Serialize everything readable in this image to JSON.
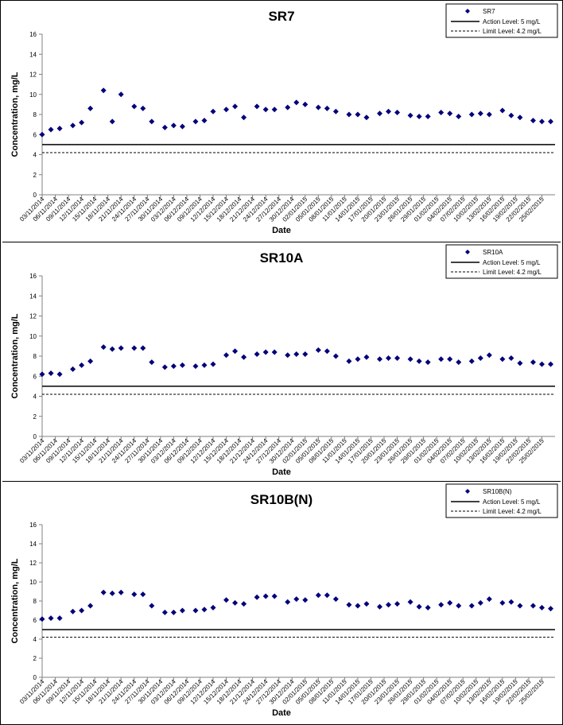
{
  "dates": [
    "03/11/2014",
    "06/11/2014",
    "09/11/2014",
    "12/11/2014",
    "15/11/2014",
    "18/11/2014",
    "21/11/2014",
    "24/11/2014",
    "27/11/2014",
    "30/11/2014",
    "03/12/2014",
    "06/12/2014",
    "09/12/2014",
    "12/12/2014",
    "15/12/2014",
    "18/12/2014",
    "21/12/2014",
    "24/12/2014",
    "27/12/2014",
    "30/12/2014",
    "02/01/2015",
    "05/01/2015",
    "08/01/2015",
    "11/01/2015",
    "14/01/2015",
    "17/01/2015",
    "20/01/2015",
    "23/01/2015",
    "26/01/2015",
    "29/01/2015",
    "01/02/2015",
    "04/02/2015",
    "07/02/2015",
    "10/02/2015",
    "13/02/2015",
    "16/02/2015",
    "19/02/2015",
    "22/02/2015",
    "25/02/2015"
  ],
  "colors": {
    "marker": "#00007a",
    "axis": "#808080",
    "line": "#000000"
  },
  "chart_data": [
    {
      "type": "scatter",
      "title": "SR7",
      "xlabel": "Date",
      "ylabel": "Concentration, mg/L",
      "ylim": [
        0,
        16
      ],
      "yticks": [
        "0",
        "2",
        "4",
        "6",
        "8",
        "10",
        "12",
        "14",
        "16"
      ],
      "x_start": "03/11/2014",
      "x_end": "28/02/2015",
      "legend": {
        "position": "top-right",
        "entries": [
          "SR7",
          "Action Level: 5 mg/L",
          "Limit Level: 4.2 mg/L"
        ]
      },
      "reference_lines": [
        {
          "name": "Action Level: 5 mg/L",
          "y": 5,
          "style": "solid"
        },
        {
          "name": "Limit Level: 4.2 mg/L",
          "y": 4.2,
          "style": "dashed"
        }
      ],
      "series": [
        {
          "name": "SR7",
          "values": [
            [
              "03/11/2014",
              6.0
            ],
            [
              "05/11/2014",
              6.5
            ],
            [
              "07/11/2014",
              6.6
            ],
            [
              "10/11/2014",
              6.9
            ],
            [
              "12/11/2014",
              7.2
            ],
            [
              "14/11/2014",
              8.6
            ],
            [
              "17/11/2014",
              10.4
            ],
            [
              "19/11/2014",
              7.3
            ],
            [
              "21/11/2014",
              10.0
            ],
            [
              "24/11/2014",
              8.8
            ],
            [
              "26/11/2014",
              8.6
            ],
            [
              "28/11/2014",
              7.3
            ],
            [
              "01/12/2014",
              6.7
            ],
            [
              "03/12/2014",
              6.9
            ],
            [
              "05/12/2014",
              6.8
            ],
            [
              "08/12/2014",
              7.3
            ],
            [
              "10/12/2014",
              7.4
            ],
            [
              "12/12/2014",
              8.3
            ],
            [
              "15/12/2014",
              8.5
            ],
            [
              "17/12/2014",
              8.8
            ],
            [
              "19/12/2014",
              7.7
            ],
            [
              "22/12/2014",
              8.8
            ],
            [
              "24/12/2014",
              8.5
            ],
            [
              "26/12/2014",
              8.5
            ],
            [
              "29/12/2014",
              8.7
            ],
            [
              "31/12/2014",
              9.2
            ],
            [
              "02/01/2015",
              9.0
            ],
            [
              "05/01/2015",
              8.7
            ],
            [
              "07/01/2015",
              8.6
            ],
            [
              "09/01/2015",
              8.3
            ],
            [
              "12/01/2015",
              8.0
            ],
            [
              "14/01/2015",
              8.0
            ],
            [
              "16/01/2015",
              7.7
            ],
            [
              "19/01/2015",
              8.1
            ],
            [
              "21/01/2015",
              8.3
            ],
            [
              "23/01/2015",
              8.2
            ],
            [
              "26/01/2015",
              7.9
            ],
            [
              "28/01/2015",
              7.8
            ],
            [
              "30/01/2015",
              7.8
            ],
            [
              "02/02/2015",
              8.2
            ],
            [
              "04/02/2015",
              8.1
            ],
            [
              "06/02/2015",
              7.8
            ],
            [
              "09/02/2015",
              8.0
            ],
            [
              "11/02/2015",
              8.1
            ],
            [
              "13/02/2015",
              8.0
            ],
            [
              "16/02/2015",
              8.4
            ],
            [
              "18/02/2015",
              7.9
            ],
            [
              "20/02/2015",
              7.7
            ],
            [
              "23/02/2015",
              7.4
            ],
            [
              "25/02/2015",
              7.3
            ],
            [
              "27/02/2015",
              7.3
            ]
          ]
        }
      ]
    },
    {
      "type": "scatter",
      "title": "SR10A",
      "xlabel": "Date",
      "ylabel": "Concentration, mg/L",
      "ylim": [
        0,
        16
      ],
      "yticks": [
        "0",
        "2",
        "4",
        "6",
        "8",
        "10",
        "12",
        "14",
        "16"
      ],
      "x_start": "03/11/2014",
      "x_end": "28/02/2015",
      "legend": {
        "position": "top-right",
        "entries": [
          "SR10A",
          "Action Level: 5 mg/L",
          "Limit Level: 4.2 mg/L"
        ]
      },
      "reference_lines": [
        {
          "name": "Action Level: 5 mg/L",
          "y": 5,
          "style": "solid"
        },
        {
          "name": "Limit Level: 4.2 mg/L",
          "y": 4.2,
          "style": "dashed"
        }
      ],
      "series": [
        {
          "name": "SR10A",
          "values": [
            [
              "03/11/2014",
              6.2
            ],
            [
              "05/11/2014",
              6.3
            ],
            [
              "07/11/2014",
              6.2
            ],
            [
              "10/11/2014",
              6.7
            ],
            [
              "12/11/2014",
              7.1
            ],
            [
              "14/11/2014",
              7.5
            ],
            [
              "17/11/2014",
              8.9
            ],
            [
              "19/11/2014",
              8.7
            ],
            [
              "21/11/2014",
              8.8
            ],
            [
              "24/11/2014",
              8.8
            ],
            [
              "26/11/2014",
              8.8
            ],
            [
              "28/11/2014",
              7.4
            ],
            [
              "01/12/2014",
              6.9
            ],
            [
              "03/12/2014",
              7.0
            ],
            [
              "05/12/2014",
              7.1
            ],
            [
              "08/12/2014",
              7.0
            ],
            [
              "10/12/2014",
              7.1
            ],
            [
              "12/12/2014",
              7.2
            ],
            [
              "15/12/2014",
              8.1
            ],
            [
              "17/12/2014",
              8.5
            ],
            [
              "19/12/2014",
              7.9
            ],
            [
              "22/12/2014",
              8.2
            ],
            [
              "24/12/2014",
              8.4
            ],
            [
              "26/12/2014",
              8.4
            ],
            [
              "29/12/2014",
              8.1
            ],
            [
              "31/12/2014",
              8.2
            ],
            [
              "02/01/2015",
              8.2
            ],
            [
              "05/01/2015",
              8.6
            ],
            [
              "07/01/2015",
              8.5
            ],
            [
              "09/01/2015",
              8.0
            ],
            [
              "12/01/2015",
              7.5
            ],
            [
              "14/01/2015",
              7.7
            ],
            [
              "16/01/2015",
              7.9
            ],
            [
              "19/01/2015",
              7.7
            ],
            [
              "21/01/2015",
              7.8
            ],
            [
              "23/01/2015",
              7.8
            ],
            [
              "26/01/2015",
              7.7
            ],
            [
              "28/01/2015",
              7.5
            ],
            [
              "30/01/2015",
              7.4
            ],
            [
              "02/02/2015",
              7.7
            ],
            [
              "04/02/2015",
              7.7
            ],
            [
              "06/02/2015",
              7.4
            ],
            [
              "09/02/2015",
              7.5
            ],
            [
              "11/02/2015",
              7.8
            ],
            [
              "13/02/2015",
              8.1
            ],
            [
              "16/02/2015",
              7.7
            ],
            [
              "18/02/2015",
              7.8
            ],
            [
              "20/02/2015",
              7.3
            ],
            [
              "23/02/2015",
              7.4
            ],
            [
              "25/02/2015",
              7.2
            ],
            [
              "27/02/2015",
              7.2
            ]
          ]
        }
      ]
    },
    {
      "type": "scatter",
      "title": "SR10B(N)",
      "xlabel": "Date",
      "ylabel": "Concentration, mg/L",
      "ylim": [
        0,
        16
      ],
      "yticks": [
        "0",
        "2",
        "4",
        "6",
        "8",
        "10",
        "12",
        "14",
        "16"
      ],
      "x_start": "03/11/2014",
      "x_end": "28/02/2015",
      "legend": {
        "position": "top-right",
        "entries": [
          "SR10B(N)",
          "Action Level: 5 mg/L",
          "Limit Level: 4.2 mg/L"
        ]
      },
      "reference_lines": [
        {
          "name": "Action Level: 5 mg/L",
          "y": 5,
          "style": "solid"
        },
        {
          "name": "Limit Level: 4.2 mg/L",
          "y": 4.2,
          "style": "dashed"
        }
      ],
      "series": [
        {
          "name": "SR10B(N)",
          "values": [
            [
              "03/11/2014",
              6.1
            ],
            [
              "05/11/2014",
              6.2
            ],
            [
              "07/11/2014",
              6.2
            ],
            [
              "10/11/2014",
              6.9
            ],
            [
              "12/11/2014",
              7.0
            ],
            [
              "14/11/2014",
              7.5
            ],
            [
              "17/11/2014",
              8.9
            ],
            [
              "19/11/2014",
              8.8
            ],
            [
              "21/11/2014",
              8.9
            ],
            [
              "24/11/2014",
              8.7
            ],
            [
              "26/11/2014",
              8.7
            ],
            [
              "28/11/2014",
              7.5
            ],
            [
              "01/12/2014",
              6.8
            ],
            [
              "03/12/2014",
              6.8
            ],
            [
              "05/12/2014",
              7.0
            ],
            [
              "08/12/2014",
              7.0
            ],
            [
              "10/12/2014",
              7.1
            ],
            [
              "12/12/2014",
              7.3
            ],
            [
              "15/12/2014",
              8.1
            ],
            [
              "17/12/2014",
              7.8
            ],
            [
              "19/12/2014",
              7.7
            ],
            [
              "22/12/2014",
              8.4
            ],
            [
              "24/12/2014",
              8.5
            ],
            [
              "26/12/2014",
              8.5
            ],
            [
              "29/12/2014",
              7.9
            ],
            [
              "31/12/2014",
              8.2
            ],
            [
              "02/01/2015",
              8.1
            ],
            [
              "05/01/2015",
              8.6
            ],
            [
              "07/01/2015",
              8.6
            ],
            [
              "09/01/2015",
              8.2
            ],
            [
              "12/01/2015",
              7.6
            ],
            [
              "14/01/2015",
              7.5
            ],
            [
              "16/01/2015",
              7.7
            ],
            [
              "19/01/2015",
              7.4
            ],
            [
              "21/01/2015",
              7.6
            ],
            [
              "23/01/2015",
              7.7
            ],
            [
              "26/01/2015",
              7.9
            ],
            [
              "28/01/2015",
              7.4
            ],
            [
              "30/01/2015",
              7.3
            ],
            [
              "02/02/2015",
              7.6
            ],
            [
              "04/02/2015",
              7.8
            ],
            [
              "06/02/2015",
              7.5
            ],
            [
              "09/02/2015",
              7.5
            ],
            [
              "11/02/2015",
              7.8
            ],
            [
              "13/02/2015",
              8.2
            ],
            [
              "16/02/2015",
              7.8
            ],
            [
              "18/02/2015",
              7.9
            ],
            [
              "20/02/2015",
              7.5
            ],
            [
              "23/02/2015",
              7.5
            ],
            [
              "25/02/2015",
              7.3
            ],
            [
              "27/02/2015",
              7.2
            ]
          ]
        }
      ]
    }
  ]
}
